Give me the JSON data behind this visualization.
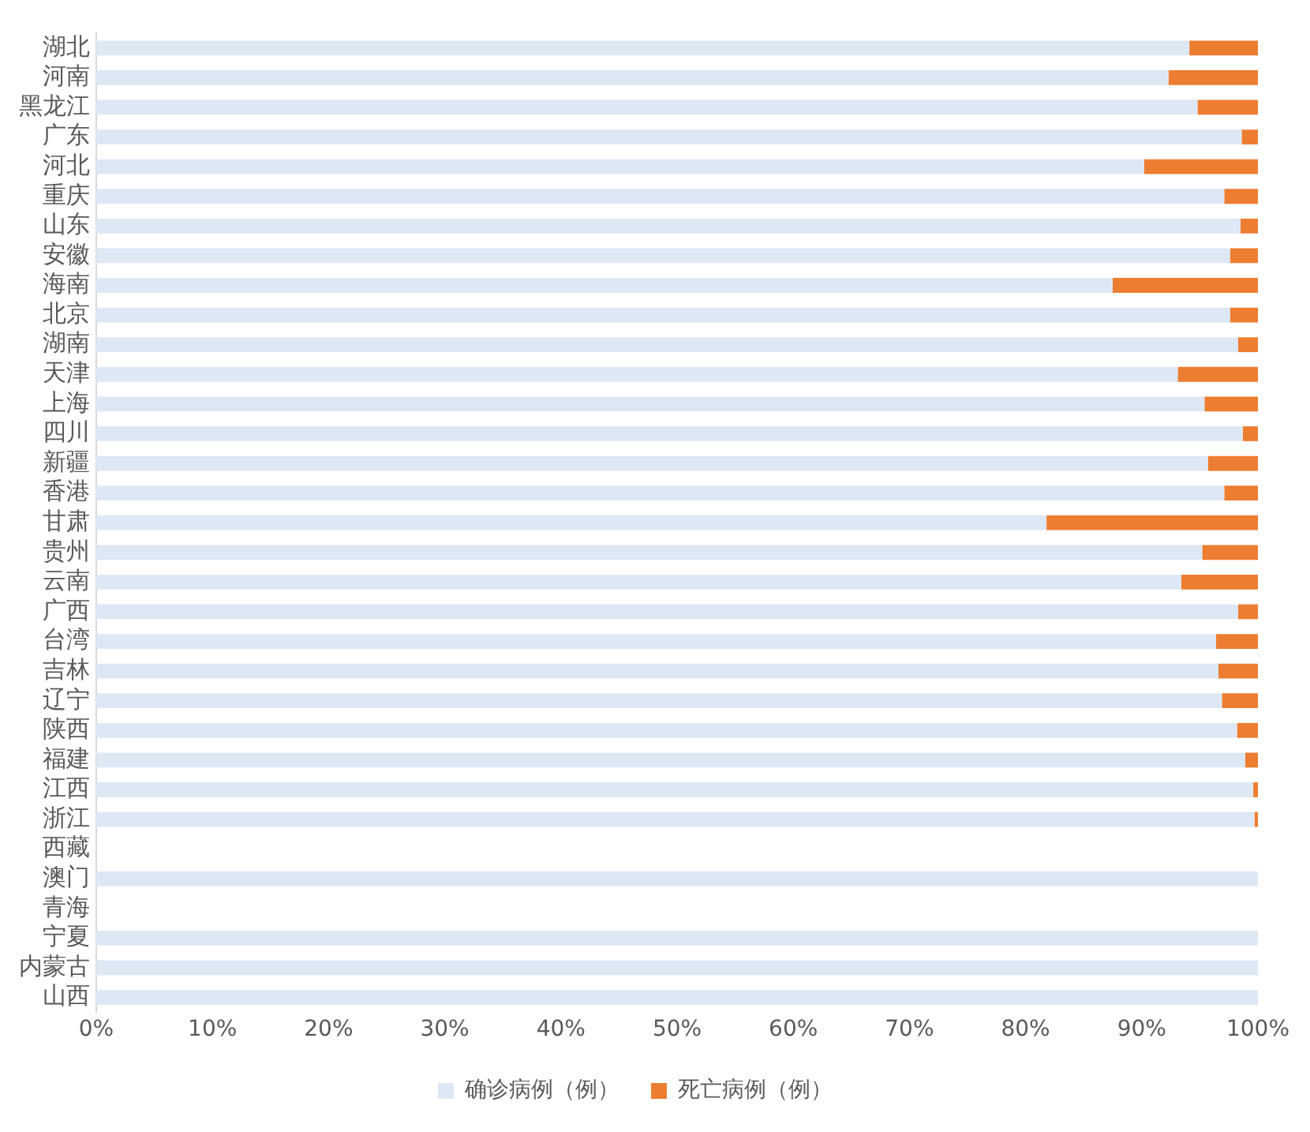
{
  "chart_data": {
    "type": "bar",
    "orientation": "horizontal",
    "stacked": true,
    "categories": [
      "湖北",
      "河南",
      "黑龙江",
      "广东",
      "河北",
      "重庆",
      "山东",
      "安徽",
      "海南",
      "北京",
      "湖南",
      "天津",
      "上海",
      "四川",
      "新疆",
      "香港",
      "甘肃",
      "贵州",
      "云南",
      "广西",
      "台湾",
      "吉林",
      "辽宁",
      "陕西",
      "福建",
      "江西",
      "浙江",
      "西藏",
      "澳门",
      "青海",
      "宁夏",
      "内蒙古",
      "山西"
    ],
    "series": [
      {
        "name": "确诊病例（例）",
        "color": "#dde8f4",
        "values": [
          94.1,
          92.3,
          94.8,
          98.6,
          90.2,
          97.1,
          98.5,
          97.6,
          87.5,
          97.6,
          98.3,
          93.1,
          95.4,
          98.7,
          95.7,
          97.1,
          81.8,
          95.2,
          93.4,
          98.3,
          96.4,
          96.6,
          96.9,
          98.2,
          98.9,
          99.6,
          99.7,
          null,
          100,
          null,
          100,
          100,
          100
        ]
      },
      {
        "name": "死亡病例（例）",
        "color": "#ed7d31",
        "values": [
          5.9,
          7.7,
          5.2,
          1.4,
          9.8,
          2.9,
          1.5,
          2.4,
          12.5,
          2.4,
          1.7,
          6.9,
          4.6,
          1.3,
          4.3,
          2.9,
          18.2,
          4.8,
          6.6,
          1.7,
          3.6,
          3.4,
          3.1,
          1.8,
          1.1,
          0.4,
          0.3,
          null,
          0,
          null,
          0,
          0,
          0
        ]
      }
    ],
    "xlim": [
      0,
      100
    ],
    "xticks": [
      {
        "value": 0,
        "label": "0%"
      },
      {
        "value": 10,
        "label": "10%"
      },
      {
        "value": 20,
        "label": "20%"
      },
      {
        "value": 30,
        "label": "30%"
      },
      {
        "value": 40,
        "label": "40%"
      },
      {
        "value": 50,
        "label": "50%"
      },
      {
        "value": 60,
        "label": "60%"
      },
      {
        "value": 70,
        "label": "70%"
      },
      {
        "value": 80,
        "label": "80%"
      },
      {
        "value": 90,
        "label": "90%"
      },
      {
        "value": 100,
        "label": "100%"
      }
    ],
    "grid": false,
    "legend": "bottom"
  }
}
